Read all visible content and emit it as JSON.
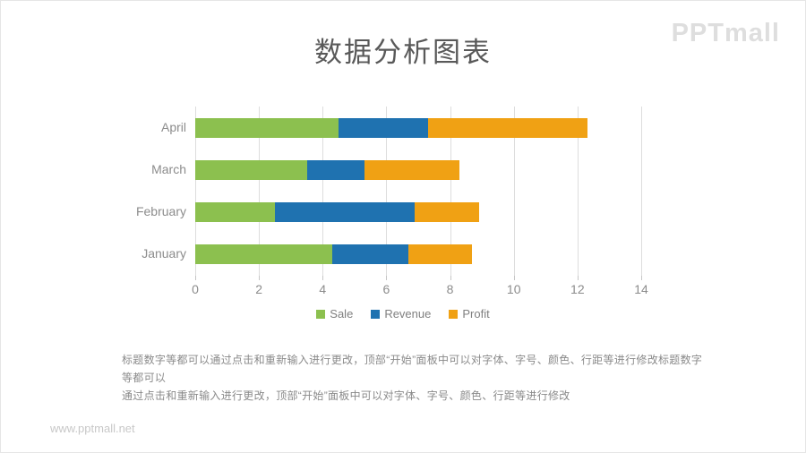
{
  "header": {
    "title": "数据分析图表",
    "logo": "PPTmall"
  },
  "chart_data": {
    "type": "bar",
    "orientation": "horizontal",
    "stacked": true,
    "title": "",
    "xlabel": "",
    "ylabel": "",
    "categories": [
      "April",
      "March",
      "February",
      "January"
    ],
    "series": [
      {
        "name": "Sale",
        "color": "#8cc04f",
        "values": [
          4.5,
          3.5,
          2.5,
          4.3
        ]
      },
      {
        "name": "Revenue",
        "color": "#1f72b0",
        "values": [
          2.8,
          1.8,
          4.4,
          2.4
        ]
      },
      {
        "name": "Profit",
        "color": "#f0a114",
        "values": [
          5.0,
          3.0,
          2.0,
          2.0
        ]
      }
    ],
    "totals": [
      12.3,
      8.3,
      8.9,
      8.7
    ],
    "xlim": [
      0,
      14
    ],
    "xticks": [
      0,
      2,
      4,
      6,
      8,
      10,
      12,
      14
    ],
    "grid": true,
    "legend_position": "bottom"
  },
  "description": {
    "lines": [
      "标题数字等都可以通过点击和重新输入进行更改，顶部“开始”面板中可以对字体、字号、颜色、行距等进行修改标题数字等都可以",
      "通过点击和重新输入进行更改，顶部“开始”面板中可以对字体、字号、颜色、行距等进行修改"
    ]
  },
  "footer": {
    "url": "www.pptmall.net"
  },
  "colors": {
    "title_text": "#595959",
    "axis_text": "#8c8c8c",
    "gridline": "#dddddd",
    "logo_text": "#dedede"
  }
}
